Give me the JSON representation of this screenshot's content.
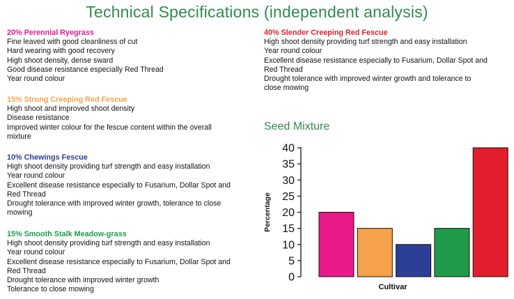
{
  "page": {
    "title": "Technical Specifications (independent analysis)"
  },
  "specs": [
    {
      "heading": "20% Perennial Ryegrass",
      "color": "#e8198b",
      "lines": [
        "Fine leaved with good cleanliness of cut",
        "Hard wearing with good recovery",
        "High shoot density, dense sward",
        "Good disease resistance especially Red Thread",
        "Year round colour"
      ]
    },
    {
      "heading": "15% Strong Creeping Red Fescue",
      "color": "#f5a24b",
      "lines": [
        "High shoot and improved shoot density",
        "Disease resistance",
        "Improved winter colour for the fescue content within the overall",
        "mixture"
      ]
    },
    {
      "heading": "10% Chewings Fescue",
      "color": "#2d3e96",
      "lines": [
        "High shoot density providing turf strength and easy installation",
        "Year round colour",
        "Excellent disease resistance especially to Fusarium, Dollar Spot and",
        "Red Thread",
        "Drought tolerance with improved winter growth, tolerance to close",
        "mowing"
      ]
    },
    {
      "heading": "15% Smooth Stalk Meadow-grass",
      "color": "#1e9a48",
      "lines": [
        "High shoot density providing turf strength and easy installation",
        "Year round colour",
        "Excellent disease resistance especially to Fusarium, Dollar Spot and",
        "Red Thread",
        "Drought tolerance with improved winter growth",
        "Tolerance to close mowing"
      ]
    },
    {
      "heading": "40% Slender Creeping Red Fescue",
      "color": "#e31e2c",
      "lines": [
        "High shoot density providing turf strength and easy installation",
        "Year round colour",
        "Excellent disease resistance especially to Fusarium, Dollar Spot and",
        "Red Thread",
        "Drought tolerance with improved winter growth and tolerance to",
        "close mowing"
      ]
    }
  ],
  "seed": {
    "title": "Seed Mixture"
  },
  "chart_data": {
    "type": "bar",
    "title": "Seed Mixture",
    "xlabel": "Cultivar",
    "ylabel": "Percentage",
    "ylim": [
      0,
      40
    ],
    "yticks": [
      "0",
      "5",
      "10",
      "15",
      "20",
      "25",
      "30",
      "35",
      "40"
    ],
    "values": [
      20,
      15,
      10,
      15,
      40
    ],
    "colors": [
      "#e8198b",
      "#f5a24b",
      "#2d3e96",
      "#1e9a48",
      "#e31e2c"
    ],
    "grid": false,
    "legend": "none"
  }
}
